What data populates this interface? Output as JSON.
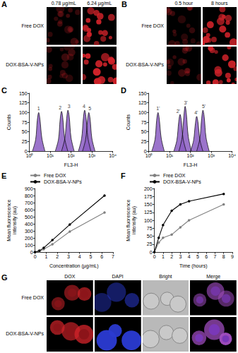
{
  "panels": {
    "A": {
      "panel": "A",
      "columns": [
        "0.78 µg/mL",
        "6.24 µg/mL"
      ],
      "rows": [
        "Free DOX",
        "DOX-BSA-V-NPs"
      ]
    },
    "B": {
      "panel": "B",
      "columns": [
        "0.5 hour",
        "8 hours"
      ],
      "rows": [
        "Free DOX",
        "DOX-BSA-V-NPs"
      ]
    },
    "G": {
      "panel": "G",
      "columns": [
        "DOX",
        "DAPI",
        "Bright",
        "Merge"
      ],
      "rows": [
        "Free DOX",
        "DOX-BSA-V-NPs"
      ]
    }
  },
  "chart_data": [
    {
      "panel": "C",
      "type": "area",
      "log": "x",
      "grid": false,
      "x_label": "FL3-H",
      "y_label": "Counts",
      "xlim": [
        1,
        10000
      ],
      "xticks": [
        {
          "value": 1,
          "label": "10⁰"
        },
        {
          "value": 10,
          "label": "10¹"
        },
        {
          "value": 100,
          "label": "10²"
        },
        {
          "value": 1000,
          "label": "10³"
        },
        {
          "value": 10000,
          "label": "10⁴"
        }
      ],
      "ylim": [
        0,
        150
      ],
      "yticks": [
        0,
        25,
        50,
        75,
        100,
        125,
        150
      ],
      "series": [
        {
          "color": "#8a5cc2",
          "x": [
            1.4,
            2.0,
            2.4,
            2.8,
            3.2,
            4.0,
            5.6
          ],
          "values": [
            0,
            30,
            80,
            100,
            84,
            33,
            0
          ]
        },
        {
          "color": "#8a5cc2",
          "x": [
            17.5,
            25,
            30,
            35,
            40,
            49,
            70
          ],
          "values": [
            0,
            31,
            82,
            103,
            87,
            34,
            0
          ]
        },
        {
          "color": "#8a5cc2",
          "x": [
            35,
            50,
            62,
            71,
            82,
            100,
            142
          ],
          "values": [
            0,
            32,
            85,
            106,
            89,
            35,
            0
          ]
        },
        {
          "color": "#8a5cc2",
          "x": [
            225,
            320,
            390,
            450,
            520,
            640,
            900
          ],
          "values": [
            0,
            32,
            85,
            106,
            89,
            35,
            0
          ]
        },
        {
          "color": "#8a5cc2",
          "x": [
            355,
            500,
            620,
            710,
            820,
            1000,
            1420
          ],
          "values": [
            0,
            30,
            80,
            100,
            84,
            33,
            0
          ]
        }
      ],
      "annotations": [
        {
          "text": "1",
          "x": 2.8,
          "y": 110
        },
        {
          "text": "2",
          "x": 30,
          "y": 113
        },
        {
          "text": "3",
          "x": 80,
          "y": 116
        },
        {
          "text": "4",
          "x": 420,
          "y": 116
        },
        {
          "text": "5",
          "x": 800,
          "y": 110
        }
      ]
    },
    {
      "panel": "D",
      "type": "area",
      "log": "x",
      "grid": false,
      "x_label": "FL3-H",
      "y_label": "Counts",
      "xlim": [
        1,
        10000
      ],
      "xticks": [
        {
          "value": 1,
          "label": "10⁰"
        },
        {
          "value": 10,
          "label": "10¹"
        },
        {
          "value": 100,
          "label": "10²"
        },
        {
          "value": 1000,
          "label": "10³"
        },
        {
          "value": 10000,
          "label": "10⁴"
        }
      ],
      "ylim": [
        0,
        150
      ],
      "yticks": [
        0,
        25,
        50,
        75,
        100,
        125,
        150
      ],
      "series": [
        {
          "color": "#8a5cc2",
          "x": [
            1.4,
            2.0,
            2.4,
            2.8,
            3.2,
            4.0,
            5.6
          ],
          "values": [
            0,
            30,
            80,
            100,
            84,
            33,
            0
          ]
        },
        {
          "color": "#8a5cc2",
          "x": [
            16,
            22.4,
            27.5,
            32,
            36.5,
            45,
            63
          ],
          "values": [
            0,
            28,
            76,
            95,
            80,
            31,
            0
          ]
        },
        {
          "color": "#8a5cc2",
          "x": [
            28,
            40,
            49,
            56,
            64,
            79,
            112
          ],
          "values": [
            0,
            35,
            93,
            116,
            97,
            38,
            0
          ]
        },
        {
          "color": "#8a5cc2",
          "x": [
            100,
            141,
            174,
            200,
            230,
            283,
            400
          ],
          "values": [
            0,
            27,
            72,
            90,
            76,
            30,
            0
          ]
        },
        {
          "color": "#8a5cc2",
          "x": [
            200,
            283,
            348,
            400,
            460,
            565,
            800
          ],
          "values": [
            0,
            32,
            85,
            106,
            89,
            35,
            0
          ]
        }
      ],
      "annotations": [
        {
          "text": "1'",
          "x": 2.8,
          "y": 110
        },
        {
          "text": "2'",
          "x": 26,
          "y": 104
        },
        {
          "text": "3'",
          "x": 60,
          "y": 125
        },
        {
          "text": "4'",
          "x": 190,
          "y": 100
        },
        {
          "text": "5'",
          "x": 440,
          "y": 116
        }
      ]
    },
    {
      "panel": "E",
      "type": "line",
      "grid": false,
      "legend": "upper left",
      "x_label": "Concentration (µg/mL)",
      "y_label": "Mean fluorescence\nintensity (au)",
      "xlim": [
        0,
        7
      ],
      "xticks": [
        0,
        1,
        2,
        3,
        4,
        5,
        6,
        7
      ],
      "ylim": [
        0,
        900
      ],
      "yticks": [
        0,
        100,
        200,
        300,
        400,
        500,
        600,
        700,
        800,
        900
      ],
      "series": [
        {
          "name": "Free DOX",
          "color": "#808080",
          "marker": "circle",
          "line_style": "solid",
          "x": [
            0,
            0.39,
            0.78,
            1.56,
            3.12,
            6.24
          ],
          "values": [
            0,
            10,
            40,
            110,
            290,
            560
          ]
        },
        {
          "name": "DOX-BSA-V-NPs",
          "color": "#000000",
          "marker": "circle",
          "line_style": "solid",
          "x": [
            0,
            0.39,
            0.78,
            1.56,
            3.12,
            6.24
          ],
          "values": [
            0,
            20,
            60,
            170,
            390,
            800
          ]
        }
      ]
    },
    {
      "panel": "F",
      "type": "line",
      "grid": false,
      "legend": "upper left",
      "x_label": "Time (hours)",
      "y_label": "Mean fluorescence\nintensity (au)",
      "xlim": [
        0,
        9
      ],
      "xticks": [
        0,
        1,
        2,
        3,
        4,
        5,
        6,
        7,
        8,
        9
      ],
      "ylim": [
        0,
        200
      ],
      "yticks": [
        0,
        25,
        50,
        75,
        100,
        125,
        150,
        175,
        200
      ],
      "series": [
        {
          "name": "Free DOX",
          "color": "#808080",
          "marker": "circle",
          "line_style": "solid",
          "x": [
            0,
            0.5,
            1,
            2,
            3,
            4,
            8
          ],
          "values": [
            0,
            30,
            45,
            55,
            78,
            100,
            150
          ]
        },
        {
          "name": "DOX-BSA-V-NPs",
          "color": "#000000",
          "marker": "circle",
          "line_style": "solid",
          "x": [
            0,
            0.5,
            1,
            2,
            3,
            4,
            8
          ],
          "values": [
            0,
            45,
            85,
            130,
            150,
            160,
            183
          ]
        }
      ]
    }
  ]
}
